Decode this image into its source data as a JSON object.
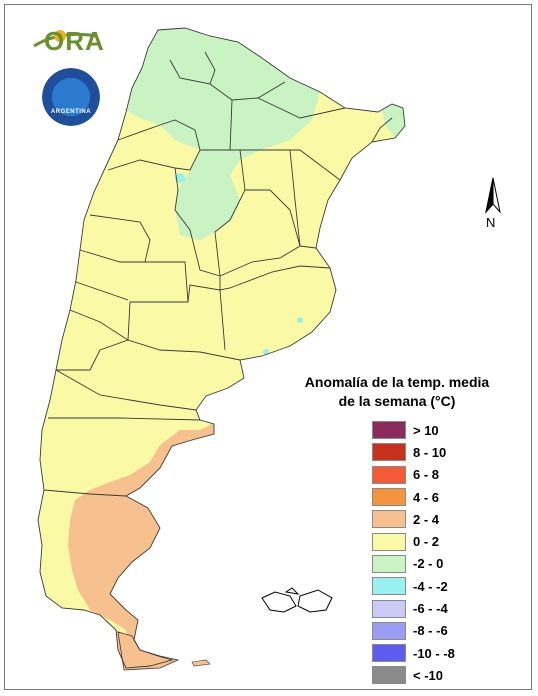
{
  "logo": {
    "text": "ORA",
    "icon": "sun-swoosh-icon"
  },
  "seal": {
    "icon": "smn-seal-icon",
    "country_text": "ARGENTINA"
  },
  "north_arrow": {
    "label": "N"
  },
  "legend": {
    "title_line1": "Anomalía de la temp. media",
    "title_line2": "de la semana (°C)",
    "items": [
      {
        "label": "> 10",
        "color": "#8b2a5c"
      },
      {
        "label": "8 - 10",
        "color": "#c8321c"
      },
      {
        "label": "6 - 8",
        "color": "#f45a37"
      },
      {
        "label": "4 - 6",
        "color": "#f6933e"
      },
      {
        "label": "2 - 4",
        "color": "#f7c08f"
      },
      {
        "label": "0 - 2",
        "color": "#fafaa6"
      },
      {
        "label": "-2 - 0",
        "color": "#c9f3c3"
      },
      {
        "label": "-4 - -2",
        "color": "#98f1ee"
      },
      {
        "label": "-6 - -4",
        "color": "#c9caf6"
      },
      {
        "label": "-8 - -6",
        "color": "#9b9cf4"
      },
      {
        "label": "-10 - -8",
        "color": "#5c5df0"
      },
      {
        "label": "< -10",
        "color": "#8a8a8a"
      }
    ]
  },
  "map": {
    "colors": {
      "warm": "#f7c08f",
      "mild": "#fafaa6",
      "cool": "#c9f3c3",
      "cold": "#98f1ee",
      "border": "#3a3a3a"
    }
  }
}
